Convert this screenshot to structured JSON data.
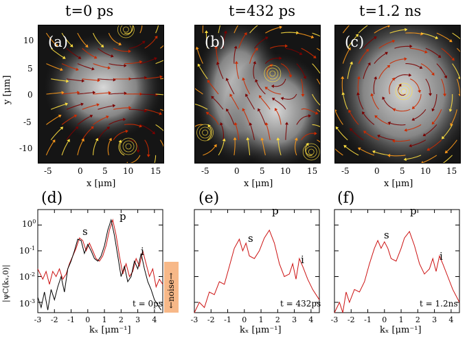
{
  "titles": [
    "t=0 ps",
    "t=432 ps",
    "t=1.2 ns"
  ],
  "map_panels": [
    {
      "label": "(a)",
      "x_ticks": [
        "-5",
        "0",
        "5",
        "10",
        "15"
      ],
      "y_ticks": [
        "10",
        "5",
        "0",
        "-5",
        "-10"
      ],
      "xlabel": "x [μm]",
      "ylabel": "y [μm]"
    },
    {
      "label": "(b)",
      "x_ticks": [
        "-5",
        "0",
        "5",
        "10",
        "15"
      ],
      "xlabel": "x [μm]"
    },
    {
      "label": "(c)",
      "x_ticks": [
        "-5",
        "0",
        "5",
        "10",
        "15"
      ],
      "xlabel": "x [μm]"
    }
  ],
  "spectrum_panels": [
    {
      "label": "(d)",
      "time_label": "t = 0ps",
      "peaks": [
        "s",
        "p",
        "i"
      ]
    },
    {
      "label": "(e)",
      "time_label": "t = 432ps",
      "peaks": [
        "p",
        "s",
        "i"
      ]
    },
    {
      "label": "(f)",
      "time_label": "t = 1.2ns",
      "peaks": [
        "p",
        "s",
        "i"
      ]
    }
  ],
  "spectrum_x_ticks": [
    "-3",
    "-2",
    "-1",
    "0",
    "1",
    "2",
    "3",
    "4"
  ],
  "spectrum_y_ticks": [
    "10",
    "10",
    "10",
    "10"
  ],
  "spectrum_y_exps": [
    "0",
    "-1",
    "-2",
    "-3"
  ],
  "spectrum_xlabel": "kₓ [μm⁻¹]",
  "spectrum_ylabel": "|ψC(kₓ,0)|",
  "noise_label": "←noise→",
  "colors": {
    "curve": "#cc1111",
    "curve_black": "#000000",
    "noise_box": "#f7b888",
    "stream_dark": "#7a0000",
    "stream_mid": "#cc2a00",
    "stream_light": "#ff9a1a",
    "stream_yellow": "#ffe040"
  },
  "chart_data": [
    {
      "type": "line",
      "title": "(d) t = 0ps",
      "xlabel": "k_x [μm^-1]",
      "ylabel": "|ψC(k_x,0)|",
      "xlim": [
        -3,
        4.5
      ],
      "ylim_log10": [
        -3.4,
        0.6
      ],
      "series": [
        {
          "name": "red",
          "x": [
            -3.0,
            -2.7,
            -2.5,
            -2.3,
            -2.1,
            -1.9,
            -1.7,
            -1.5,
            -1.3,
            -1.1,
            -0.9,
            -0.7,
            -0.5,
            -0.3,
            -0.1,
            0.1,
            0.3,
            0.5,
            0.7,
            0.9,
            1.1,
            1.3,
            1.5,
            1.7,
            1.9,
            2.1,
            2.3,
            2.5,
            2.7,
            2.9,
            3.1,
            3.3,
            3.5,
            3.7,
            3.9,
            4.1,
            4.3,
            4.5
          ],
          "log10y": [
            -1.7,
            -2.1,
            -1.8,
            -2.3,
            -1.8,
            -2.0,
            -1.7,
            -2.1,
            -1.9,
            -1.5,
            -1.2,
            -0.9,
            -0.5,
            -0.6,
            -1.0,
            -0.7,
            -1.0,
            -1.3,
            -1.4,
            -1.2,
            -0.8,
            -0.2,
            0.2,
            -0.4,
            -1.2,
            -1.9,
            -1.5,
            -2.0,
            -1.8,
            -1.3,
            -1.6,
            -1.0,
            -1.5,
            -2.0,
            -1.7,
            -2.4,
            -2.1,
            -2.3
          ]
        },
        {
          "name": "black",
          "x": [
            -3.0,
            -2.8,
            -2.6,
            -2.4,
            -2.2,
            -2.0,
            -1.8,
            -1.6,
            -1.4,
            -1.2,
            -1.0,
            -0.8,
            -0.6,
            -0.4,
            -0.2,
            0.0,
            0.2,
            0.4,
            0.6,
            0.8,
            1.0,
            1.2,
            1.4,
            1.6,
            1.8,
            2.0,
            2.2,
            2.4,
            2.6,
            2.8,
            3.0,
            3.2,
            3.4,
            3.6,
            3.8,
            4.0,
            4.2,
            4.4
          ],
          "log10y": [
            -2.8,
            -3.2,
            -2.6,
            -3.3,
            -2.5,
            -2.9,
            -2.4,
            -2.0,
            -2.6,
            -1.7,
            -1.4,
            -1.0,
            -0.55,
            -0.6,
            -1.1,
            -0.75,
            -1.0,
            -1.3,
            -1.4,
            -1.2,
            -0.8,
            -0.2,
            0.2,
            -0.4,
            -1.2,
            -2.0,
            -1.6,
            -2.2,
            -2.0,
            -1.4,
            -1.7,
            -1.1,
            -1.7,
            -2.2,
            -2.5,
            -2.9,
            -3.1,
            -3.3
          ]
        }
      ]
    },
    {
      "type": "line",
      "title": "(e) t = 432ps",
      "xlabel": "k_x [μm^-1]",
      "xlim": [
        -3,
        4.5
      ],
      "ylim_log10": [
        -3.4,
        0.6
      ],
      "series": [
        {
          "name": "red",
          "x": [
            -3.0,
            -2.7,
            -2.4,
            -2.1,
            -1.8,
            -1.5,
            -1.2,
            -0.9,
            -0.6,
            -0.3,
            -0.1,
            0.1,
            0.3,
            0.6,
            0.9,
            1.2,
            1.5,
            1.8,
            2.1,
            2.4,
            2.7,
            2.9,
            3.1,
            3.3,
            3.5,
            3.8,
            4.1,
            4.5
          ],
          "log10y": [
            -3.5,
            -3.0,
            -3.2,
            -2.6,
            -2.7,
            -2.2,
            -2.3,
            -1.6,
            -0.9,
            -0.55,
            -1.0,
            -0.7,
            -1.2,
            -1.3,
            -1.0,
            -0.5,
            -0.2,
            -0.7,
            -1.5,
            -2.0,
            -1.9,
            -1.5,
            -2.1,
            -1.3,
            -1.6,
            -2.1,
            -2.5,
            -2.9
          ]
        }
      ]
    },
    {
      "type": "line",
      "title": "(f) t = 1.2ns",
      "xlabel": "k_x [μm^-1]",
      "xlim": [
        -3,
        4.5
      ],
      "ylim_log10": [
        -3.4,
        0.6
      ],
      "series": [
        {
          "name": "red",
          "x": [
            -3.0,
            -2.7,
            -2.5,
            -2.3,
            -2.1,
            -1.8,
            -1.5,
            -1.2,
            -0.9,
            -0.6,
            -0.4,
            -0.2,
            0.0,
            0.2,
            0.4,
            0.7,
            1.0,
            1.2,
            1.5,
            1.8,
            2.1,
            2.4,
            2.7,
            2.9,
            3.1,
            3.3,
            3.5,
            3.8,
            4.1,
            4.5
          ],
          "log10y": [
            -3.5,
            -3.0,
            -3.4,
            -2.6,
            -3.0,
            -2.5,
            -2.6,
            -2.2,
            -1.5,
            -0.9,
            -0.6,
            -0.9,
            -0.65,
            -0.9,
            -1.3,
            -1.4,
            -0.9,
            -0.5,
            -0.25,
            -0.8,
            -1.5,
            -1.9,
            -1.7,
            -1.3,
            -1.8,
            -1.2,
            -1.5,
            -2.0,
            -2.5,
            -3.0
          ]
        }
      ]
    }
  ]
}
